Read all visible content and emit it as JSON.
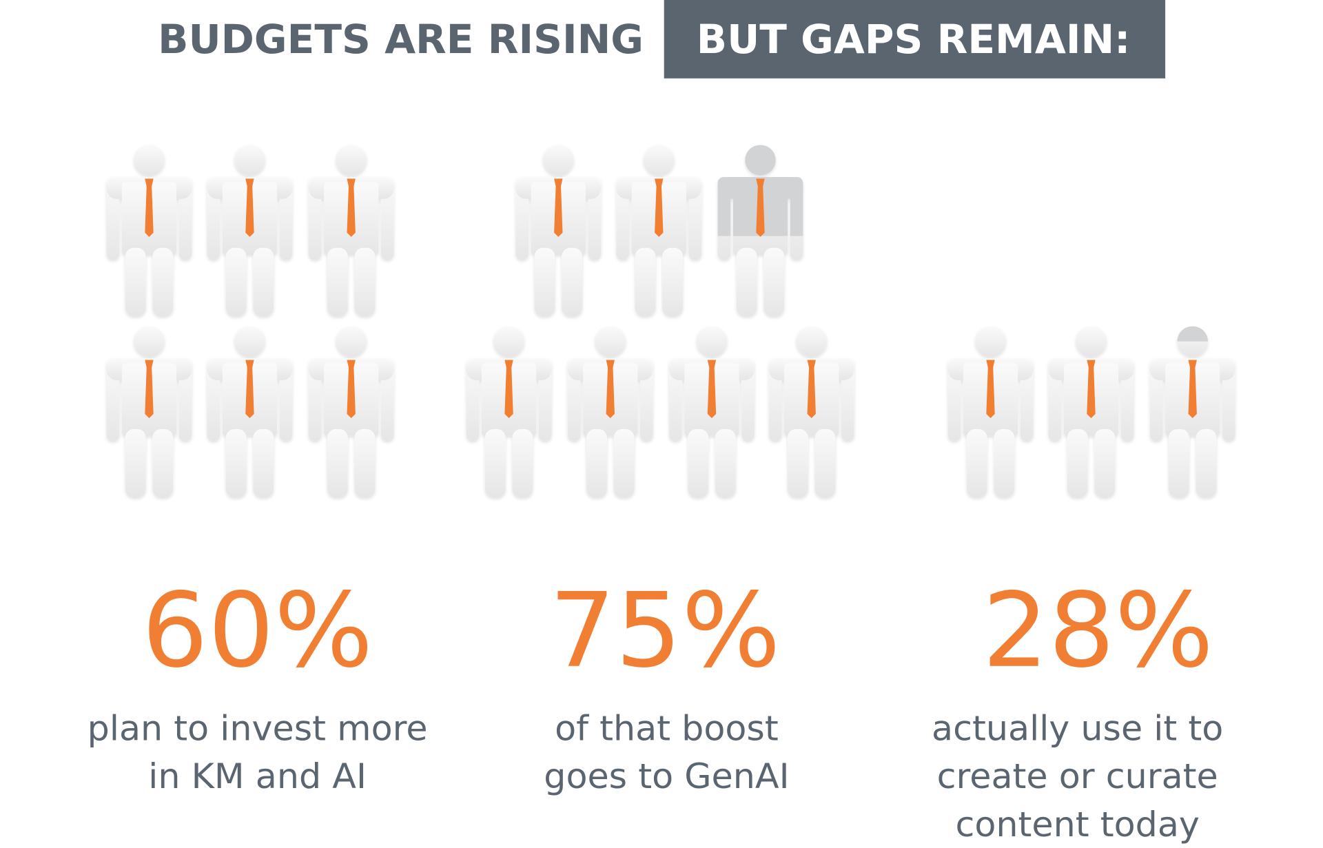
{
  "header": {
    "title_left": "BUDGETS ARE RISING",
    "title_right": "BUT GAPS REMAIN:"
  },
  "stats": [
    {
      "value": "60%",
      "text_lines": [
        "plan to invest more",
        "in KM and AI"
      ]
    },
    {
      "value": "75%",
      "text_lines": [
        "of that boost",
        "goes to GenAI"
      ]
    },
    {
      "value": "28%",
      "text_lines": [
        "actually use it to",
        "create or curate",
        "content today"
      ]
    }
  ]
}
